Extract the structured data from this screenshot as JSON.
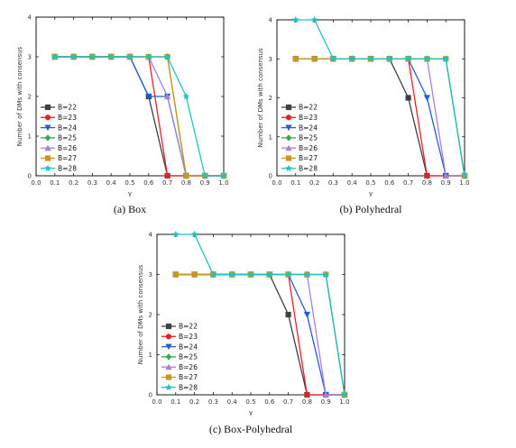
{
  "chart_data": [
    {
      "type": "line",
      "caption": "(a) Box",
      "xlabel": "γ",
      "ylabel": "Number of DMs with consensus",
      "xlim": [
        0.0,
        1.0
      ],
      "ylim": [
        0,
        4
      ],
      "xticks": [
        "0.0",
        "0.1",
        "0.2",
        "0.3",
        "0.4",
        "0.5",
        "0.6",
        "0.7",
        "0.8",
        "0.9",
        "1.0"
      ],
      "yticks": [
        "0",
        "1",
        "2",
        "3",
        "4"
      ],
      "legend_position": "bottom-left",
      "series": [
        {
          "name": "B=22",
          "color": "#404040",
          "marker": "square",
          "points": [
            [
              0.1,
              3
            ],
            [
              0.2,
              3
            ],
            [
              0.3,
              3
            ],
            [
              0.4,
              3
            ],
            [
              0.5,
              3
            ],
            [
              0.6,
              2
            ],
            [
              0.7,
              0
            ],
            [
              0.8,
              0
            ],
            [
              0.9,
              0
            ],
            [
              1.0,
              0
            ]
          ]
        },
        {
          "name": "B=23",
          "color": "#e8202a",
          "marker": "circle",
          "points": [
            [
              0.1,
              3
            ],
            [
              0.2,
              3
            ],
            [
              0.3,
              3
            ],
            [
              0.4,
              3
            ],
            [
              0.5,
              3
            ],
            [
              0.6,
              3
            ],
            [
              0.7,
              0
            ],
            [
              0.8,
              0
            ],
            [
              0.9,
              0
            ],
            [
              1.0,
              0
            ]
          ]
        },
        {
          "name": "B=24",
          "color": "#1f5fd6",
          "marker": "triangle-down",
          "points": [
            [
              0.1,
              3
            ],
            [
              0.2,
              3
            ],
            [
              0.3,
              3
            ],
            [
              0.4,
              3
            ],
            [
              0.5,
              3
            ],
            [
              0.6,
              2
            ],
            [
              0.7,
              2
            ],
            [
              0.8,
              0
            ],
            [
              0.9,
              0
            ],
            [
              1.0,
              0
            ]
          ]
        },
        {
          "name": "B=25",
          "color": "#2eab4a",
          "marker": "diamond",
          "points": [
            [
              0.1,
              3
            ],
            [
              0.2,
              3
            ],
            [
              0.3,
              3
            ],
            [
              0.4,
              3
            ],
            [
              0.5,
              3
            ],
            [
              0.6,
              3
            ],
            [
              0.7,
              3
            ],
            [
              0.8,
              0
            ],
            [
              0.9,
              0
            ],
            [
              1.0,
              0
            ]
          ]
        },
        {
          "name": "B=26",
          "color": "#a57fd8",
          "marker": "triangle-up",
          "points": [
            [
              0.1,
              3
            ],
            [
              0.2,
              3
            ],
            [
              0.3,
              3
            ],
            [
              0.4,
              3
            ],
            [
              0.5,
              3
            ],
            [
              0.6,
              3
            ],
            [
              0.7,
              2
            ],
            [
              0.8,
              0
            ],
            [
              0.9,
              0
            ],
            [
              1.0,
              0
            ]
          ]
        },
        {
          "name": "B=27",
          "color": "#c6981c",
          "marker": "square",
          "points": [
            [
              0.1,
              3
            ],
            [
              0.2,
              3
            ],
            [
              0.3,
              3
            ],
            [
              0.4,
              3
            ],
            [
              0.5,
              3
            ],
            [
              0.6,
              3
            ],
            [
              0.7,
              3
            ],
            [
              0.8,
              0
            ],
            [
              0.9,
              0
            ],
            [
              1.0,
              0
            ]
          ]
        },
        {
          "name": "B=28",
          "color": "#1dc3bf",
          "marker": "star",
          "points": [
            [
              0.1,
              3
            ],
            [
              0.2,
              3
            ],
            [
              0.3,
              3
            ],
            [
              0.4,
              3
            ],
            [
              0.5,
              3
            ],
            [
              0.6,
              3
            ],
            [
              0.7,
              3
            ],
            [
              0.8,
              2
            ],
            [
              0.9,
              0
            ],
            [
              1.0,
              0
            ]
          ]
        }
      ]
    },
    {
      "type": "line",
      "caption": "(b) Polyhedral",
      "xlabel": "γ",
      "ylabel": "Number of DMs with consensus",
      "xlim": [
        0.0,
        1.0
      ],
      "ylim": [
        0,
        4
      ],
      "xticks": [
        "0.0",
        "0.1",
        "0.2",
        "0.3",
        "0.4",
        "0.5",
        "0.6",
        "0.7",
        "0.8",
        "0.9",
        "1.0"
      ],
      "yticks": [
        "0",
        "1",
        "2",
        "3",
        "4"
      ],
      "legend_position": "bottom-left",
      "series": [
        {
          "name": "B=22",
          "color": "#404040",
          "marker": "square",
          "points": [
            [
              0.1,
              3
            ],
            [
              0.2,
              3
            ],
            [
              0.3,
              3
            ],
            [
              0.4,
              3
            ],
            [
              0.5,
              3
            ],
            [
              0.6,
              3
            ],
            [
              0.7,
              2
            ],
            [
              0.8,
              0
            ],
            [
              0.9,
              0
            ],
            [
              1.0,
              0
            ]
          ]
        },
        {
          "name": "B=23",
          "color": "#e8202a",
          "marker": "circle",
          "points": [
            [
              0.1,
              3
            ],
            [
              0.2,
              3
            ],
            [
              0.3,
              3
            ],
            [
              0.4,
              3
            ],
            [
              0.5,
              3
            ],
            [
              0.6,
              3
            ],
            [
              0.7,
              3
            ],
            [
              0.8,
              0
            ],
            [
              0.9,
              0
            ],
            [
              1.0,
              0
            ]
          ]
        },
        {
          "name": "B=24",
          "color": "#1f5fd6",
          "marker": "triangle-down",
          "points": [
            [
              0.1,
              3
            ],
            [
              0.2,
              3
            ],
            [
              0.3,
              3
            ],
            [
              0.4,
              3
            ],
            [
              0.5,
              3
            ],
            [
              0.6,
              3
            ],
            [
              0.7,
              3
            ],
            [
              0.8,
              2
            ],
            [
              0.9,
              0
            ],
            [
              1.0,
              0
            ]
          ]
        },
        {
          "name": "B=25",
          "color": "#2eab4a",
          "marker": "diamond",
          "points": [
            [
              0.1,
              3
            ],
            [
              0.2,
              3
            ],
            [
              0.3,
              3
            ],
            [
              0.4,
              3
            ],
            [
              0.5,
              3
            ],
            [
              0.6,
              3
            ],
            [
              0.7,
              3
            ],
            [
              0.8,
              3
            ],
            [
              0.9,
              3
            ],
            [
              1.0,
              0
            ]
          ]
        },
        {
          "name": "B=26",
          "color": "#a57fd8",
          "marker": "triangle-up",
          "points": [
            [
              0.1,
              3
            ],
            [
              0.2,
              3
            ],
            [
              0.3,
              3
            ],
            [
              0.4,
              3
            ],
            [
              0.5,
              3
            ],
            [
              0.6,
              3
            ],
            [
              0.7,
              3
            ],
            [
              0.8,
              3
            ],
            [
              0.9,
              0
            ],
            [
              1.0,
              0
            ]
          ]
        },
        {
          "name": "B=27",
          "color": "#c6981c",
          "marker": "square",
          "points": [
            [
              0.1,
              3
            ],
            [
              0.2,
              3
            ],
            [
              0.3,
              3
            ],
            [
              0.4,
              3
            ],
            [
              0.5,
              3
            ],
            [
              0.6,
              3
            ],
            [
              0.7,
              3
            ],
            [
              0.8,
              3
            ],
            [
              0.9,
              3
            ],
            [
              1.0,
              0
            ]
          ]
        },
        {
          "name": "B=28",
          "color": "#1dc3bf",
          "marker": "star",
          "points": [
            [
              0.1,
              4
            ],
            [
              0.2,
              4
            ],
            [
              0.3,
              3
            ],
            [
              0.4,
              3
            ],
            [
              0.5,
              3
            ],
            [
              0.6,
              3
            ],
            [
              0.7,
              3
            ],
            [
              0.8,
              3
            ],
            [
              0.9,
              3
            ],
            [
              1.0,
              0
            ]
          ]
        }
      ]
    },
    {
      "type": "line",
      "caption": "(c) Box-Polyhedral",
      "xlabel": "γ",
      "ylabel": "Number of DMs with consensus",
      "xlim": [
        0.0,
        1.0
      ],
      "ylim": [
        0,
        4
      ],
      "xticks": [
        "0.0",
        "0.1",
        "0.2",
        "0.3",
        "0.4",
        "0.5",
        "0.6",
        "0.7",
        "0.8",
        "0.9",
        "1.0"
      ],
      "yticks": [
        "0",
        "1",
        "2",
        "3",
        "4"
      ],
      "legend_position": "bottom-left",
      "series": [
        {
          "name": "B=22",
          "color": "#404040",
          "marker": "square",
          "points": [
            [
              0.1,
              3
            ],
            [
              0.2,
              3
            ],
            [
              0.3,
              3
            ],
            [
              0.4,
              3
            ],
            [
              0.5,
              3
            ],
            [
              0.6,
              3
            ],
            [
              0.7,
              2
            ],
            [
              0.8,
              0
            ],
            [
              0.9,
              0
            ],
            [
              1.0,
              0
            ]
          ]
        },
        {
          "name": "B=23",
          "color": "#e8202a",
          "marker": "circle",
          "points": [
            [
              0.1,
              3
            ],
            [
              0.2,
              3
            ],
            [
              0.3,
              3
            ],
            [
              0.4,
              3
            ],
            [
              0.5,
              3
            ],
            [
              0.6,
              3
            ],
            [
              0.7,
              3
            ],
            [
              0.8,
              0
            ],
            [
              0.9,
              0
            ],
            [
              1.0,
              0
            ]
          ]
        },
        {
          "name": "B=24",
          "color": "#1f5fd6",
          "marker": "triangle-down",
          "points": [
            [
              0.1,
              3
            ],
            [
              0.2,
              3
            ],
            [
              0.3,
              3
            ],
            [
              0.4,
              3
            ],
            [
              0.5,
              3
            ],
            [
              0.6,
              3
            ],
            [
              0.7,
              3
            ],
            [
              0.8,
              2
            ],
            [
              0.9,
              0
            ],
            [
              1.0,
              0
            ]
          ]
        },
        {
          "name": "B=25",
          "color": "#2eab4a",
          "marker": "diamond",
          "points": [
            [
              0.1,
              3
            ],
            [
              0.2,
              3
            ],
            [
              0.3,
              3
            ],
            [
              0.4,
              3
            ],
            [
              0.5,
              3
            ],
            [
              0.6,
              3
            ],
            [
              0.7,
              3
            ],
            [
              0.8,
              3
            ],
            [
              0.9,
              3
            ],
            [
              1.0,
              0
            ]
          ]
        },
        {
          "name": "B=26",
          "color": "#a57fd8",
          "marker": "triangle-up",
          "points": [
            [
              0.1,
              3
            ],
            [
              0.2,
              3
            ],
            [
              0.3,
              3
            ],
            [
              0.4,
              3
            ],
            [
              0.5,
              3
            ],
            [
              0.6,
              3
            ],
            [
              0.7,
              3
            ],
            [
              0.8,
              3
            ],
            [
              0.9,
              0
            ],
            [
              1.0,
              0
            ]
          ]
        },
        {
          "name": "B=27",
          "color": "#c6981c",
          "marker": "square",
          "points": [
            [
              0.1,
              3
            ],
            [
              0.2,
              3
            ],
            [
              0.3,
              3
            ],
            [
              0.4,
              3
            ],
            [
              0.5,
              3
            ],
            [
              0.6,
              3
            ],
            [
              0.7,
              3
            ],
            [
              0.8,
              3
            ],
            [
              0.9,
              3
            ],
            [
              1.0,
              0
            ]
          ]
        },
        {
          "name": "B=28",
          "color": "#1dc3bf",
          "marker": "star",
          "points": [
            [
              0.1,
              4
            ],
            [
              0.2,
              4
            ],
            [
              0.3,
              3
            ],
            [
              0.4,
              3
            ],
            [
              0.5,
              3
            ],
            [
              0.6,
              3
            ],
            [
              0.7,
              3
            ],
            [
              0.8,
              3
            ],
            [
              0.9,
              3
            ],
            [
              1.0,
              0
            ]
          ]
        }
      ]
    }
  ]
}
